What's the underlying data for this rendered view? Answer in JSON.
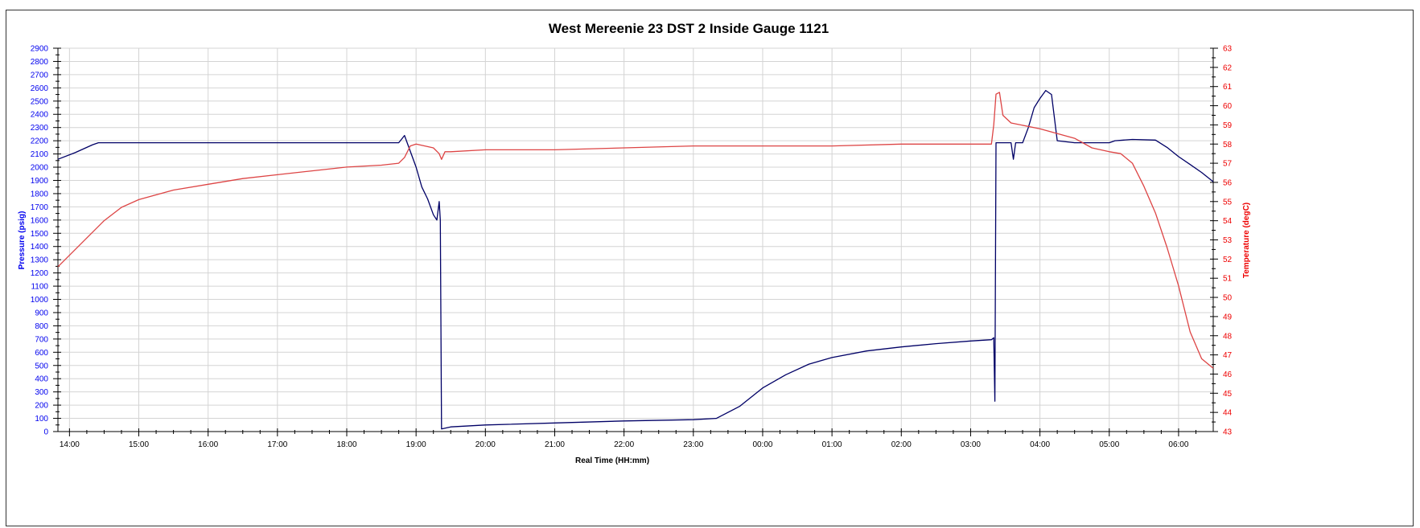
{
  "chart_data": {
    "type": "line",
    "title": "West Mereenie 23 DST 2 Inside Gauge 1121",
    "xlabel": "Real Time (HH:mm)",
    "x_tick_labels": [
      "14:00",
      "15:00",
      "16:00",
      "17:00",
      "18:00",
      "19:00",
      "20:00",
      "21:00",
      "22:00",
      "23:00",
      "00:00",
      "01:00",
      "02:00",
      "03:00",
      "04:00",
      "05:00",
      "06:00"
    ],
    "x_range": [
      "13:50",
      "06:30"
    ],
    "y_left": {
      "label": "Pressure (psig)",
      "min": 0,
      "max": 2900,
      "major_step": 100,
      "color": "#0000ee"
    },
    "y_right": {
      "label": "Temperature (degC)",
      "min": 43,
      "max": 63,
      "major_step": 1,
      "color": "#ee0000"
    },
    "grid": true,
    "series": [
      {
        "axis": "left",
        "color": "#000066",
        "points": [
          [
            "13:50",
            2060
          ],
          [
            "14:05",
            2110
          ],
          [
            "14:20",
            2170
          ],
          [
            "14:25",
            2185
          ],
          [
            "14:35",
            2185
          ],
          [
            "17:25",
            2185
          ],
          [
            "18:45",
            2185
          ],
          [
            "18:50",
            2240
          ],
          [
            "19:00",
            2000
          ],
          [
            "19:05",
            1850
          ],
          [
            "19:10",
            1760
          ],
          [
            "19:15",
            1640
          ],
          [
            "19:18",
            1600
          ],
          [
            "19:20",
            1740
          ],
          [
            "19:21",
            1600
          ],
          [
            "19:22",
            20
          ],
          [
            "19:30",
            35
          ],
          [
            "20:00",
            50
          ],
          [
            "21:00",
            65
          ],
          [
            "22:00",
            80
          ],
          [
            "23:00",
            90
          ],
          [
            "23:20",
            100
          ],
          [
            "23:40",
            190
          ],
          [
            "00:00",
            330
          ],
          [
            "00:20",
            430
          ],
          [
            "00:40",
            510
          ],
          [
            "01:00",
            560
          ],
          [
            "01:30",
            610
          ],
          [
            "02:00",
            640
          ],
          [
            "02:30",
            665
          ],
          [
            "03:00",
            685
          ],
          [
            "03:18",
            695
          ],
          [
            "03:20",
            710
          ],
          [
            "03:21",
            230
          ],
          [
            "03:22",
            2185
          ],
          [
            "03:35",
            2185
          ],
          [
            "03:37",
            2060
          ],
          [
            "03:39",
            2185
          ],
          [
            "03:45",
            2185
          ],
          [
            "03:50",
            2300
          ],
          [
            "03:55",
            2450
          ],
          [
            "04:00",
            2520
          ],
          [
            "04:05",
            2580
          ],
          [
            "04:10",
            2550
          ],
          [
            "04:15",
            2200
          ],
          [
            "04:30",
            2185
          ],
          [
            "05:00",
            2185
          ],
          [
            "05:05",
            2200
          ],
          [
            "05:20",
            2210
          ],
          [
            "05:40",
            2205
          ],
          [
            "05:50",
            2150
          ],
          [
            "06:00",
            2080
          ],
          [
            "06:10",
            2020
          ],
          [
            "06:20",
            1960
          ],
          [
            "06:30",
            1890
          ]
        ]
      },
      {
        "axis": "right",
        "color": "#dd4444",
        "points": [
          [
            "13:50",
            51.6
          ],
          [
            "14:00",
            52.2
          ],
          [
            "14:15",
            53.1
          ],
          [
            "14:30",
            54.0
          ],
          [
            "14:45",
            54.7
          ],
          [
            "15:00",
            55.1
          ],
          [
            "15:30",
            55.6
          ],
          [
            "16:00",
            55.9
          ],
          [
            "16:30",
            56.2
          ],
          [
            "17:00",
            56.4
          ],
          [
            "17:30",
            56.6
          ],
          [
            "18:00",
            56.8
          ],
          [
            "18:30",
            56.9
          ],
          [
            "18:45",
            57.0
          ],
          [
            "18:50",
            57.3
          ],
          [
            "18:55",
            57.9
          ],
          [
            "19:00",
            58.0
          ],
          [
            "19:15",
            57.8
          ],
          [
            "19:20",
            57.5
          ],
          [
            "19:22",
            57.2
          ],
          [
            "19:25",
            57.6
          ],
          [
            "19:30",
            57.6
          ],
          [
            "20:00",
            57.7
          ],
          [
            "21:00",
            57.7
          ],
          [
            "22:00",
            57.8
          ],
          [
            "23:00",
            57.9
          ],
          [
            "00:00",
            57.9
          ],
          [
            "01:00",
            57.9
          ],
          [
            "02:00",
            58.0
          ],
          [
            "03:00",
            58.0
          ],
          [
            "03:18",
            58.0
          ],
          [
            "03:20",
            59.0
          ],
          [
            "03:22",
            60.6
          ],
          [
            "03:25",
            60.7
          ],
          [
            "03:28",
            59.5
          ],
          [
            "03:35",
            59.1
          ],
          [
            "04:00",
            58.8
          ],
          [
            "04:30",
            58.3
          ],
          [
            "04:45",
            57.8
          ],
          [
            "05:00",
            57.6
          ],
          [
            "05:10",
            57.5
          ],
          [
            "05:20",
            57.0
          ],
          [
            "05:30",
            55.8
          ],
          [
            "05:40",
            54.4
          ],
          [
            "05:50",
            52.6
          ],
          [
            "06:00",
            50.6
          ],
          [
            "06:10",
            48.2
          ],
          [
            "06:20",
            46.8
          ],
          [
            "06:30",
            46.3
          ]
        ]
      }
    ]
  }
}
